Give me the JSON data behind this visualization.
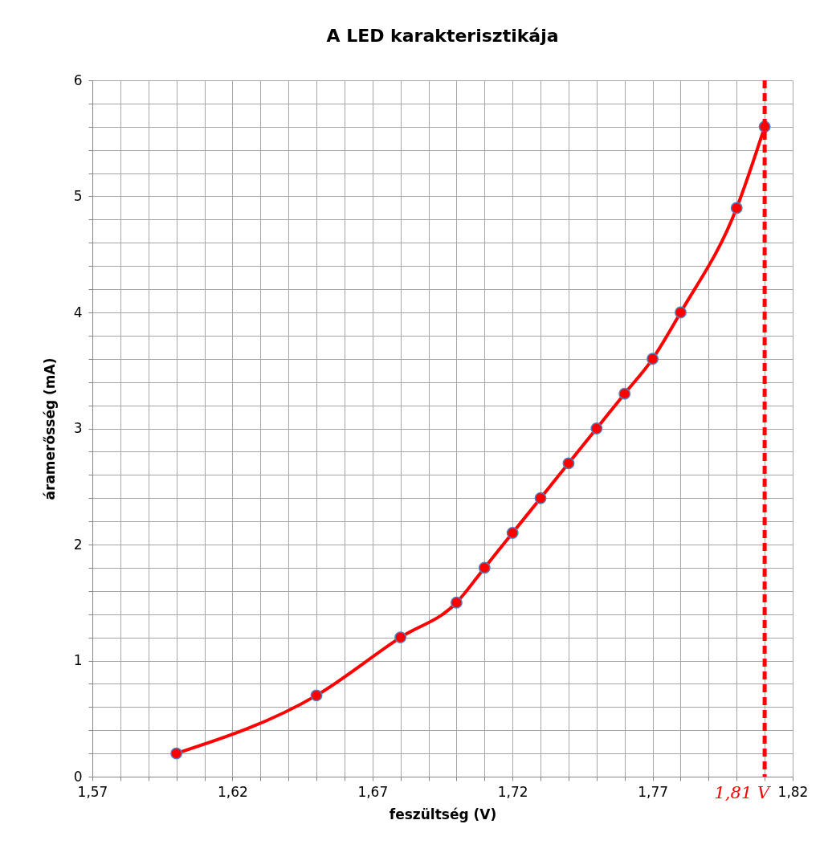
{
  "chart_data": {
    "type": "line",
    "title": "A LED karakterisztikája",
    "xlabel": "feszültség (V)",
    "ylabel": "áramerősség (mA)",
    "x": [
      1.6,
      1.65,
      1.68,
      1.7,
      1.71,
      1.72,
      1.73,
      1.74,
      1.75,
      1.76,
      1.77,
      1.78,
      1.8,
      1.81
    ],
    "series": [
      {
        "color": "#ff0000",
        "values": [
          0.2,
          0.7,
          1.2,
          1.5,
          1.8,
          2.1,
          2.4,
          2.7,
          3.0,
          3.3,
          3.6,
          4.0,
          4.9,
          5.6
        ]
      }
    ],
    "xlim": [
      1.57,
      1.82
    ],
    "xticks": [
      {
        "value": 1.57,
        "label": "1,57"
      },
      {
        "value": 1.58,
        "label": null
      },
      {
        "value": 1.59,
        "label": null
      },
      {
        "value": 1.6,
        "label": null
      },
      {
        "value": 1.61,
        "label": null
      },
      {
        "value": 1.62,
        "label": "1,62"
      },
      {
        "value": 1.63,
        "label": null
      },
      {
        "value": 1.64,
        "label": null
      },
      {
        "value": 1.65,
        "label": null
      },
      {
        "value": 1.66,
        "label": null
      },
      {
        "value": 1.67,
        "label": "1,67"
      },
      {
        "value": 1.68,
        "label": null
      },
      {
        "value": 1.69,
        "label": null
      },
      {
        "value": 1.7,
        "label": null
      },
      {
        "value": 1.71,
        "label": null
      },
      {
        "value": 1.72,
        "label": "1,72"
      },
      {
        "value": 1.73,
        "label": null
      },
      {
        "value": 1.74,
        "label": null
      },
      {
        "value": 1.75,
        "label": null
      },
      {
        "value": 1.76,
        "label": null
      },
      {
        "value": 1.77,
        "label": "1,77"
      },
      {
        "value": 1.78,
        "label": null
      },
      {
        "value": 1.79,
        "label": null
      },
      {
        "value": 1.8,
        "label": null
      },
      {
        "value": 1.81,
        "label": null
      },
      {
        "value": 1.82,
        "label": "1,82"
      }
    ],
    "ylim": [
      0,
      6
    ],
    "yticks": [
      0,
      {
        "value": 0.2,
        "label": null
      },
      {
        "value": 0.4,
        "label": null
      },
      {
        "value": 0.6,
        "label": null
      },
      {
        "value": 0.8,
        "label": null
      },
      1,
      {
        "value": 1.2,
        "label": null
      },
      {
        "value": 1.4,
        "label": null
      },
      {
        "value": 1.6,
        "label": null
      },
      {
        "value": 1.8,
        "label": null
      },
      2,
      {
        "value": 2.2,
        "label": null
      },
      {
        "value": 2.4,
        "label": null
      },
      {
        "value": 2.6,
        "label": null
      },
      {
        "value": 2.8,
        "label": null
      },
      3,
      {
        "value": 3.2,
        "label": null
      },
      {
        "value": 3.4,
        "label": null
      },
      {
        "value": 3.6,
        "label": null
      },
      {
        "value": 3.8,
        "label": null
      },
      4,
      {
        "value": 4.2,
        "label": null
      },
      {
        "value": 4.4,
        "label": null
      },
      {
        "value": 4.6,
        "label": null
      },
      {
        "value": 4.8,
        "label": null
      },
      5,
      {
        "value": 5.2,
        "label": null
      },
      {
        "value": 5.4,
        "label": null
      },
      {
        "value": 5.6,
        "label": null
      },
      {
        "value": 5.8,
        "label": null
      },
      6
    ],
    "grid": true,
    "marker": "circle",
    "line_style": "solid",
    "ref_lines": [
      {
        "axis": "x",
        "value": 1.81,
        "label": "1,81 V",
        "color": "#ff0000",
        "line_style": "dashed"
      }
    ]
  }
}
